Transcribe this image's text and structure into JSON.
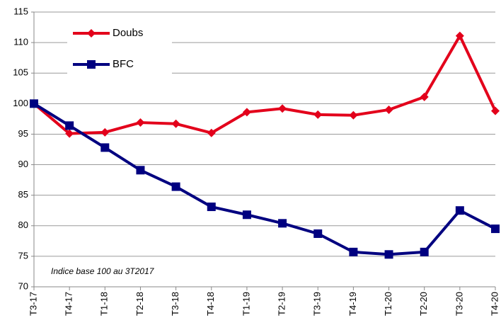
{
  "chart_data": {
    "type": "line",
    "categories": [
      "T3-17",
      "T4-17",
      "T1-18",
      "T2-18",
      "T3-18",
      "T4-18",
      "T1-19",
      "T2-19",
      "T3-19",
      "T4-19",
      "T1-20",
      "T2-20",
      "T3-20",
      "T4-20"
    ],
    "series": [
      {
        "name": "Doubs",
        "color": "#e3001b",
        "marker": "diamond",
        "values": [
          100,
          95.1,
          95.3,
          96.9,
          96.7,
          95.2,
          98.6,
          99.2,
          98.2,
          98.1,
          99.0,
          101.1,
          111.1,
          98.8
        ]
      },
      {
        "name": "BFC",
        "color": "#000080",
        "marker": "square",
        "values": [
          100,
          96.4,
          92.8,
          89.1,
          86.4,
          83.1,
          81.8,
          80.4,
          78.7,
          75.7,
          75.3,
          75.7,
          82.5,
          79.5
        ]
      }
    ],
    "ylim": [
      70,
      115
    ],
    "yticks": [
      70,
      75,
      80,
      85,
      90,
      95,
      100,
      105,
      110,
      115
    ],
    "grid": true,
    "legend": "upper left",
    "annotations": [
      "Indice base 100 au 3T2017"
    ]
  }
}
